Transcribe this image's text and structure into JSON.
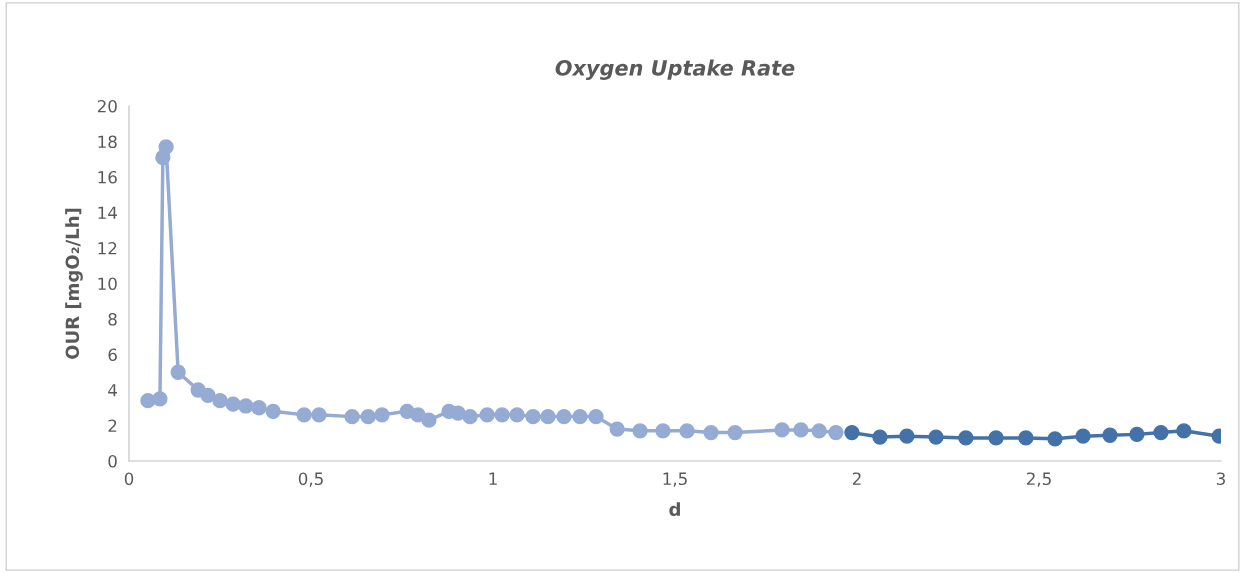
{
  "chart_data": {
    "type": "line",
    "title": "Oxygen Uptake Rate",
    "xlabel": "d",
    "ylabel": "OUR [mgO₂/Lh]",
    "xlim": [
      0,
      3
    ],
    "xticks": [
      0,
      {
        "value": 0.5,
        "label": "0,5"
      },
      1,
      {
        "value": 1.5,
        "label": "1,5"
      },
      2,
      {
        "value": 2.5,
        "label": "2,5"
      },
      3
    ],
    "ylim": [
      0,
      20
    ],
    "yticks": [
      0,
      2,
      4,
      6,
      8,
      10,
      12,
      14,
      16,
      18,
      20
    ],
    "grid": false,
    "marker": "circle",
    "line_style": "solid",
    "series": [
      {
        "color": "#95abd3",
        "x": [
          0.052,
          0.085,
          0.093,
          0.102,
          0.135,
          0.19,
          0.217,
          0.25,
          0.286,
          0.321,
          0.357,
          0.396,
          0.481,
          0.522,
          0.613,
          0.657,
          0.695,
          0.764,
          0.794,
          0.824,
          0.879,
          0.904,
          0.937,
          0.984,
          1.025,
          1.066,
          1.11,
          1.151,
          1.195,
          1.239,
          1.283,
          1.341,
          1.404,
          1.467,
          1.533,
          1.599,
          1.665,
          1.794,
          1.846,
          1.896,
          1.942
        ],
        "values": [
          3.4,
          3.5,
          17.1,
          17.7,
          5.0,
          4.0,
          3.7,
          3.4,
          3.2,
          3.1,
          3.0,
          2.8,
          2.6,
          2.6,
          2.5,
          2.5,
          2.6,
          2.8,
          2.6,
          2.3,
          2.8,
          2.7,
          2.5,
          2.6,
          2.6,
          2.6,
          2.5,
          2.5,
          2.5,
          2.5,
          2.5,
          1.8,
          1.7,
          1.7,
          1.7,
          1.6,
          1.6,
          1.75,
          1.75,
          1.7,
          1.6
        ]
      },
      {
        "color": "#4472a8",
        "x": [
          1.986,
          2.063,
          2.137,
          2.217,
          2.299,
          2.382,
          2.464,
          2.544,
          2.621,
          2.695,
          2.769,
          2.835,
          2.898,
          2.995
        ],
        "values": [
          1.6,
          1.35,
          1.4,
          1.35,
          1.3,
          1.3,
          1.3,
          1.25,
          1.4,
          1.45,
          1.5,
          1.6,
          1.7,
          1.4
        ]
      }
    ]
  }
}
